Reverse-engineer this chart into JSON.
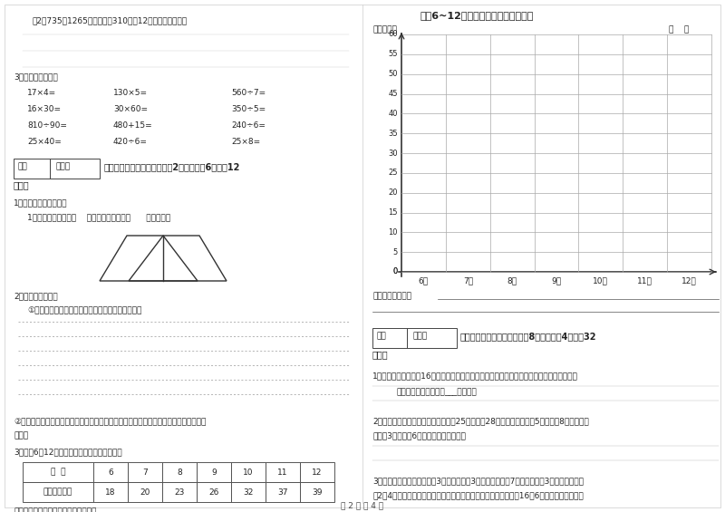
{
  "title": "芳芳6~12岁每年生日体重情况统计图",
  "unit_label": "单位： 千克",
  "year_month": "年    月",
  "x_labels": [
    "6岁",
    "7岁",
    "8岁",
    "9岁",
    "10岁",
    "11岁",
    "12岁"
  ],
  "bg_color": "#ffffff",
  "page_footer": "第 2 页 共 4 页"
}
